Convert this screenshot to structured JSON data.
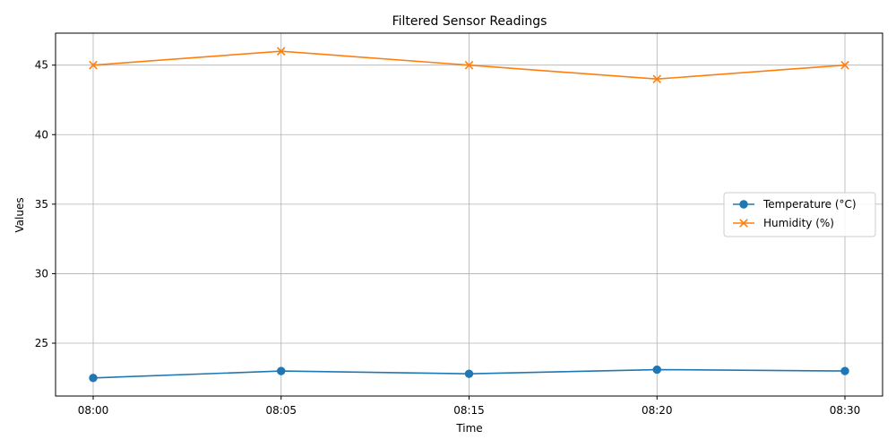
{
  "chart_data": {
    "type": "line",
    "title": "Filtered Sensor Readings",
    "xlabel": "Time",
    "ylabel": "Values",
    "categories": [
      "08:00",
      "08:05",
      "08:15",
      "08:20",
      "08:30"
    ],
    "yticks": [
      25,
      30,
      35,
      40,
      45
    ],
    "ylim": [
      21.2,
      47.3
    ],
    "grid": true,
    "legend_position": "center-right",
    "series": [
      {
        "name": "Temperature (°C)",
        "values": [
          22.5,
          23.0,
          22.8,
          23.1,
          23.0
        ],
        "color": "#1f77b4",
        "marker": "circle"
      },
      {
        "name": "Humidity (%)",
        "values": [
          45,
          46,
          45,
          44,
          45
        ],
        "color": "#ff7f0e",
        "marker": "x"
      }
    ]
  }
}
